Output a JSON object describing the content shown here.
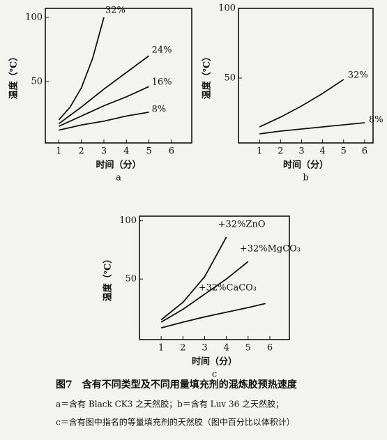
{
  "chart_data": [
    {
      "type": "line",
      "subtitle": "a",
      "xlabel": "时间（分）",
      "ylabel": "温度（℃）",
      "xlim": [
        0.4,
        6.9
      ],
      "ylim": [
        2,
        107
      ],
      "xticks": [
        1,
        2,
        3,
        4,
        5,
        6
      ],
      "yticks": [
        50,
        100
      ],
      "series": [
        {
          "name": "32%",
          "color": "#111111",
          "x": [
            1,
            1.5,
            2,
            2.5,
            3
          ],
          "values": [
            20,
            30,
            45,
            68,
            100
          ]
        },
        {
          "name": "24%",
          "color": "#111111",
          "x": [
            1,
            2,
            3,
            4,
            5
          ],
          "values": [
            17,
            30,
            44,
            57,
            70
          ]
        },
        {
          "name": "16%",
          "color": "#111111",
          "x": [
            1,
            2,
            3,
            4,
            5
          ],
          "values": [
            15,
            23,
            31,
            38,
            46
          ]
        },
        {
          "name": "8%",
          "color": "#111111",
          "x": [
            1,
            2,
            3,
            4,
            5
          ],
          "values": [
            12,
            16,
            19,
            23,
            26
          ]
        }
      ]
    },
    {
      "type": "line",
      "subtitle": "b",
      "xlabel": "时间（分）",
      "ylabel": "温度（℃）",
      "xlim": [
        0,
        6.4
      ],
      "ylim": [
        3.5,
        100
      ],
      "xticks": [
        1,
        2,
        3,
        4,
        5,
        6
      ],
      "yticks": [
        50,
        100
      ],
      "series": [
        {
          "name": "32%",
          "color": "#111111",
          "x": [
            1,
            2,
            3,
            4,
            5
          ],
          "values": [
            15,
            22,
            30,
            39,
            49
          ]
        },
        {
          "name": "8%",
          "color": "#111111",
          "x": [
            1,
            2,
            3,
            4,
            5,
            6
          ],
          "values": [
            10,
            12,
            13.5,
            15,
            16.5,
            18
          ]
        }
      ]
    },
    {
      "type": "line",
      "subtitle": "c",
      "xlabel": "时间（分）",
      "ylabel": "温度（℃）",
      "xlim": [
        0,
        6.9
      ],
      "ylim": [
        -2,
        104
      ],
      "xticks": [
        1,
        2,
        3,
        4,
        5,
        6
      ],
      "yticks": [
        50,
        100
      ],
      "series": [
        {
          "name": "+32%ZnO",
          "color": "#111111",
          "x": [
            1,
            2,
            3,
            4
          ],
          "values": [
            15,
            30,
            52,
            86
          ]
        },
        {
          "name": "+32%MgCO₃",
          "color": "#111111",
          "x": [
            1,
            2,
            3,
            4,
            5
          ],
          "values": [
            13,
            24,
            37,
            50,
            65
          ]
        },
        {
          "name": "+32%CaCO₃",
          "color": "#111111",
          "x": [
            1,
            2,
            3,
            4,
            5,
            5.8
          ],
          "values": [
            8,
            13,
            17.5,
            21.5,
            25.5,
            29
          ]
        }
      ]
    }
  ],
  "caption": {
    "title": "图7　含有不同类型及不同用量填充剂的混炼胶预热速度",
    "lines": [
      "a＝含有 Black CK3 之天然胶；b＝含有 Luv 36 之天然胶；",
      "c＝含有图中指名的等量填充剂的天然胶（图中百分比以体积计）"
    ]
  }
}
